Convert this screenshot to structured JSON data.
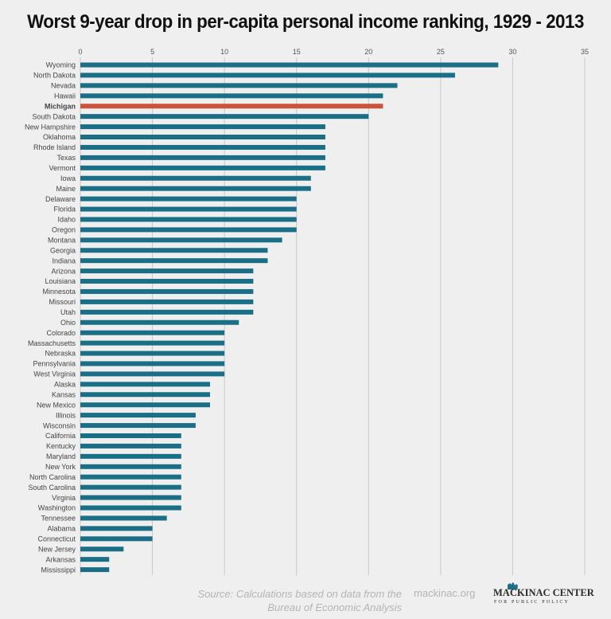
{
  "chart_data": {
    "type": "bar",
    "orientation": "horizontal",
    "title": "Worst 9-year drop in per-capita personal income ranking, 1929 - 2013",
    "xlim": [
      0,
      35
    ],
    "xticks": [
      "0",
      "5",
      "10",
      "15",
      "20",
      "25",
      "30",
      "35"
    ],
    "grid": true,
    "highlight": "Michigan",
    "colors": {
      "bar": "#1a6f86",
      "highlight": "#c9533c",
      "grid": "#c8c8c8"
    },
    "categories": [
      "Wyoming",
      "North Dakota",
      "Nevada",
      "Hawaii",
      "Michigan",
      "South Dakota",
      "New Hampshire",
      "Oklahoma",
      "Rhode Island",
      "Texas",
      "Vermont",
      "Iowa",
      "Maine",
      "Delaware",
      "Florida",
      "Idaho",
      "Oregon",
      "Montana",
      "Georgia",
      "Indiana",
      "Arizona",
      "Louisiana",
      "Minnesota",
      "Missouri",
      "Utah",
      "Ohio",
      "Colorado",
      "Massachusetts",
      "Nebraska",
      "Pennsylvania",
      "West Virginia",
      "Alaska",
      "Kansas",
      "New Mexico",
      "Illinois",
      "Wisconsin",
      "California",
      "Kentucky",
      "Maryland",
      "New York",
      "North Carolina",
      "South Carolina",
      "Virginia",
      "Washington",
      "Tennessee",
      "Alabama",
      "Connecticut",
      "New Jersey",
      "Arkansas",
      "Mississippi"
    ],
    "values": [
      29,
      26,
      22,
      21,
      21,
      20,
      17,
      17,
      17,
      17,
      17,
      16,
      16,
      15,
      15,
      15,
      15,
      14,
      13,
      13,
      12,
      12,
      12,
      12,
      12,
      11,
      10,
      10,
      10,
      10,
      10,
      9,
      9,
      9,
      8,
      8,
      7,
      7,
      7,
      7,
      7,
      7,
      7,
      7,
      6,
      5,
      5,
      3,
      2,
      2
    ]
  },
  "footer": {
    "source_line1": "Source: Calculations based on data from the",
    "source_line2": "Bureau of Economic Analysis",
    "site": "mackinac.org",
    "logo_text": "MACKINAC CENTER",
    "logo_sub": "FOR PUBLIC POLICY"
  }
}
